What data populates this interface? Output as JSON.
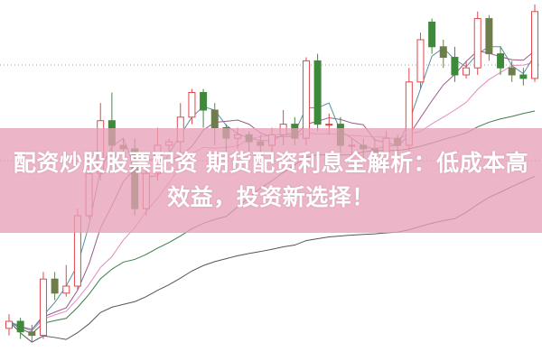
{
  "title": "配资炒股股票配资 期货配资利息全解析：低成本高效益，投资新选择！",
  "colors": {
    "up": "#e0474c",
    "down": "#3f8a3a",
    "down_dark": "#6e7d4c",
    "banner": "#e8a0b9",
    "ma5": "#5a8fa0",
    "ma10": "#9a5a8a",
    "ma20": "#e68ac0",
    "ma60": "#3b7d46",
    "ma120": "#555555",
    "grid": "#999999"
  },
  "chart_data": {
    "type": "candlestick",
    "grid": "two dotted horizontal lines",
    "candles": [
      [
        8,
        10,
        12,
        6
      ],
      [
        10,
        7,
        11,
        5
      ],
      [
        7,
        6,
        9,
        4
      ],
      [
        6,
        22,
        24,
        5
      ],
      [
        22,
        18,
        24,
        16
      ],
      [
        18,
        20,
        26,
        17
      ],
      [
        20,
        40,
        42,
        19
      ],
      [
        40,
        52,
        56,
        39
      ],
      [
        52,
        67,
        72,
        50
      ],
      [
        67,
        60,
        75,
        58
      ],
      [
        60,
        59,
        62,
        56
      ],
      [
        59,
        42,
        62,
        40
      ],
      [
        42,
        52,
        55,
        40
      ],
      [
        52,
        60,
        65,
        50
      ],
      [
        60,
        61,
        62,
        58
      ],
      [
        61,
        68,
        72,
        58
      ],
      [
        68,
        75,
        76,
        66
      ],
      [
        75,
        70,
        76,
        65
      ],
      [
        70,
        65,
        72,
        60
      ],
      [
        65,
        62,
        66,
        58
      ],
      [
        62,
        63,
        65,
        59
      ],
      [
        63,
        61,
        64,
        58
      ],
      [
        61,
        60,
        63,
        57
      ],
      [
        60,
        63,
        65,
        58
      ],
      [
        63,
        66,
        70,
        60
      ],
      [
        66,
        62,
        68,
        60
      ],
      [
        62,
        84,
        85,
        60
      ],
      [
        84,
        66,
        86,
        64
      ],
      [
        66,
        66,
        69,
        63
      ],
      [
        66,
        60,
        68,
        58
      ],
      [
        60,
        60,
        62,
        57
      ],
      [
        60,
        59,
        62,
        56
      ],
      [
        59,
        58,
        62,
        55
      ],
      [
        58,
        62,
        64,
        56
      ],
      [
        62,
        60,
        63,
        57
      ],
      [
        60,
        78,
        82,
        58
      ],
      [
        78,
        90,
        92,
        76
      ],
      [
        95,
        88,
        96,
        86
      ],
      [
        88,
        85,
        90,
        82
      ],
      [
        85,
        80,
        88,
        78
      ],
      [
        80,
        82,
        84,
        79
      ],
      [
        82,
        96,
        98,
        80
      ],
      [
        96,
        86,
        97,
        84
      ],
      [
        86,
        82,
        88,
        80
      ],
      [
        82,
        80,
        84,
        78
      ],
      [
        80,
        79,
        82,
        77
      ],
      [
        79,
        98,
        100,
        78
      ]
    ],
    "ylim": [
      0,
      100
    ]
  }
}
